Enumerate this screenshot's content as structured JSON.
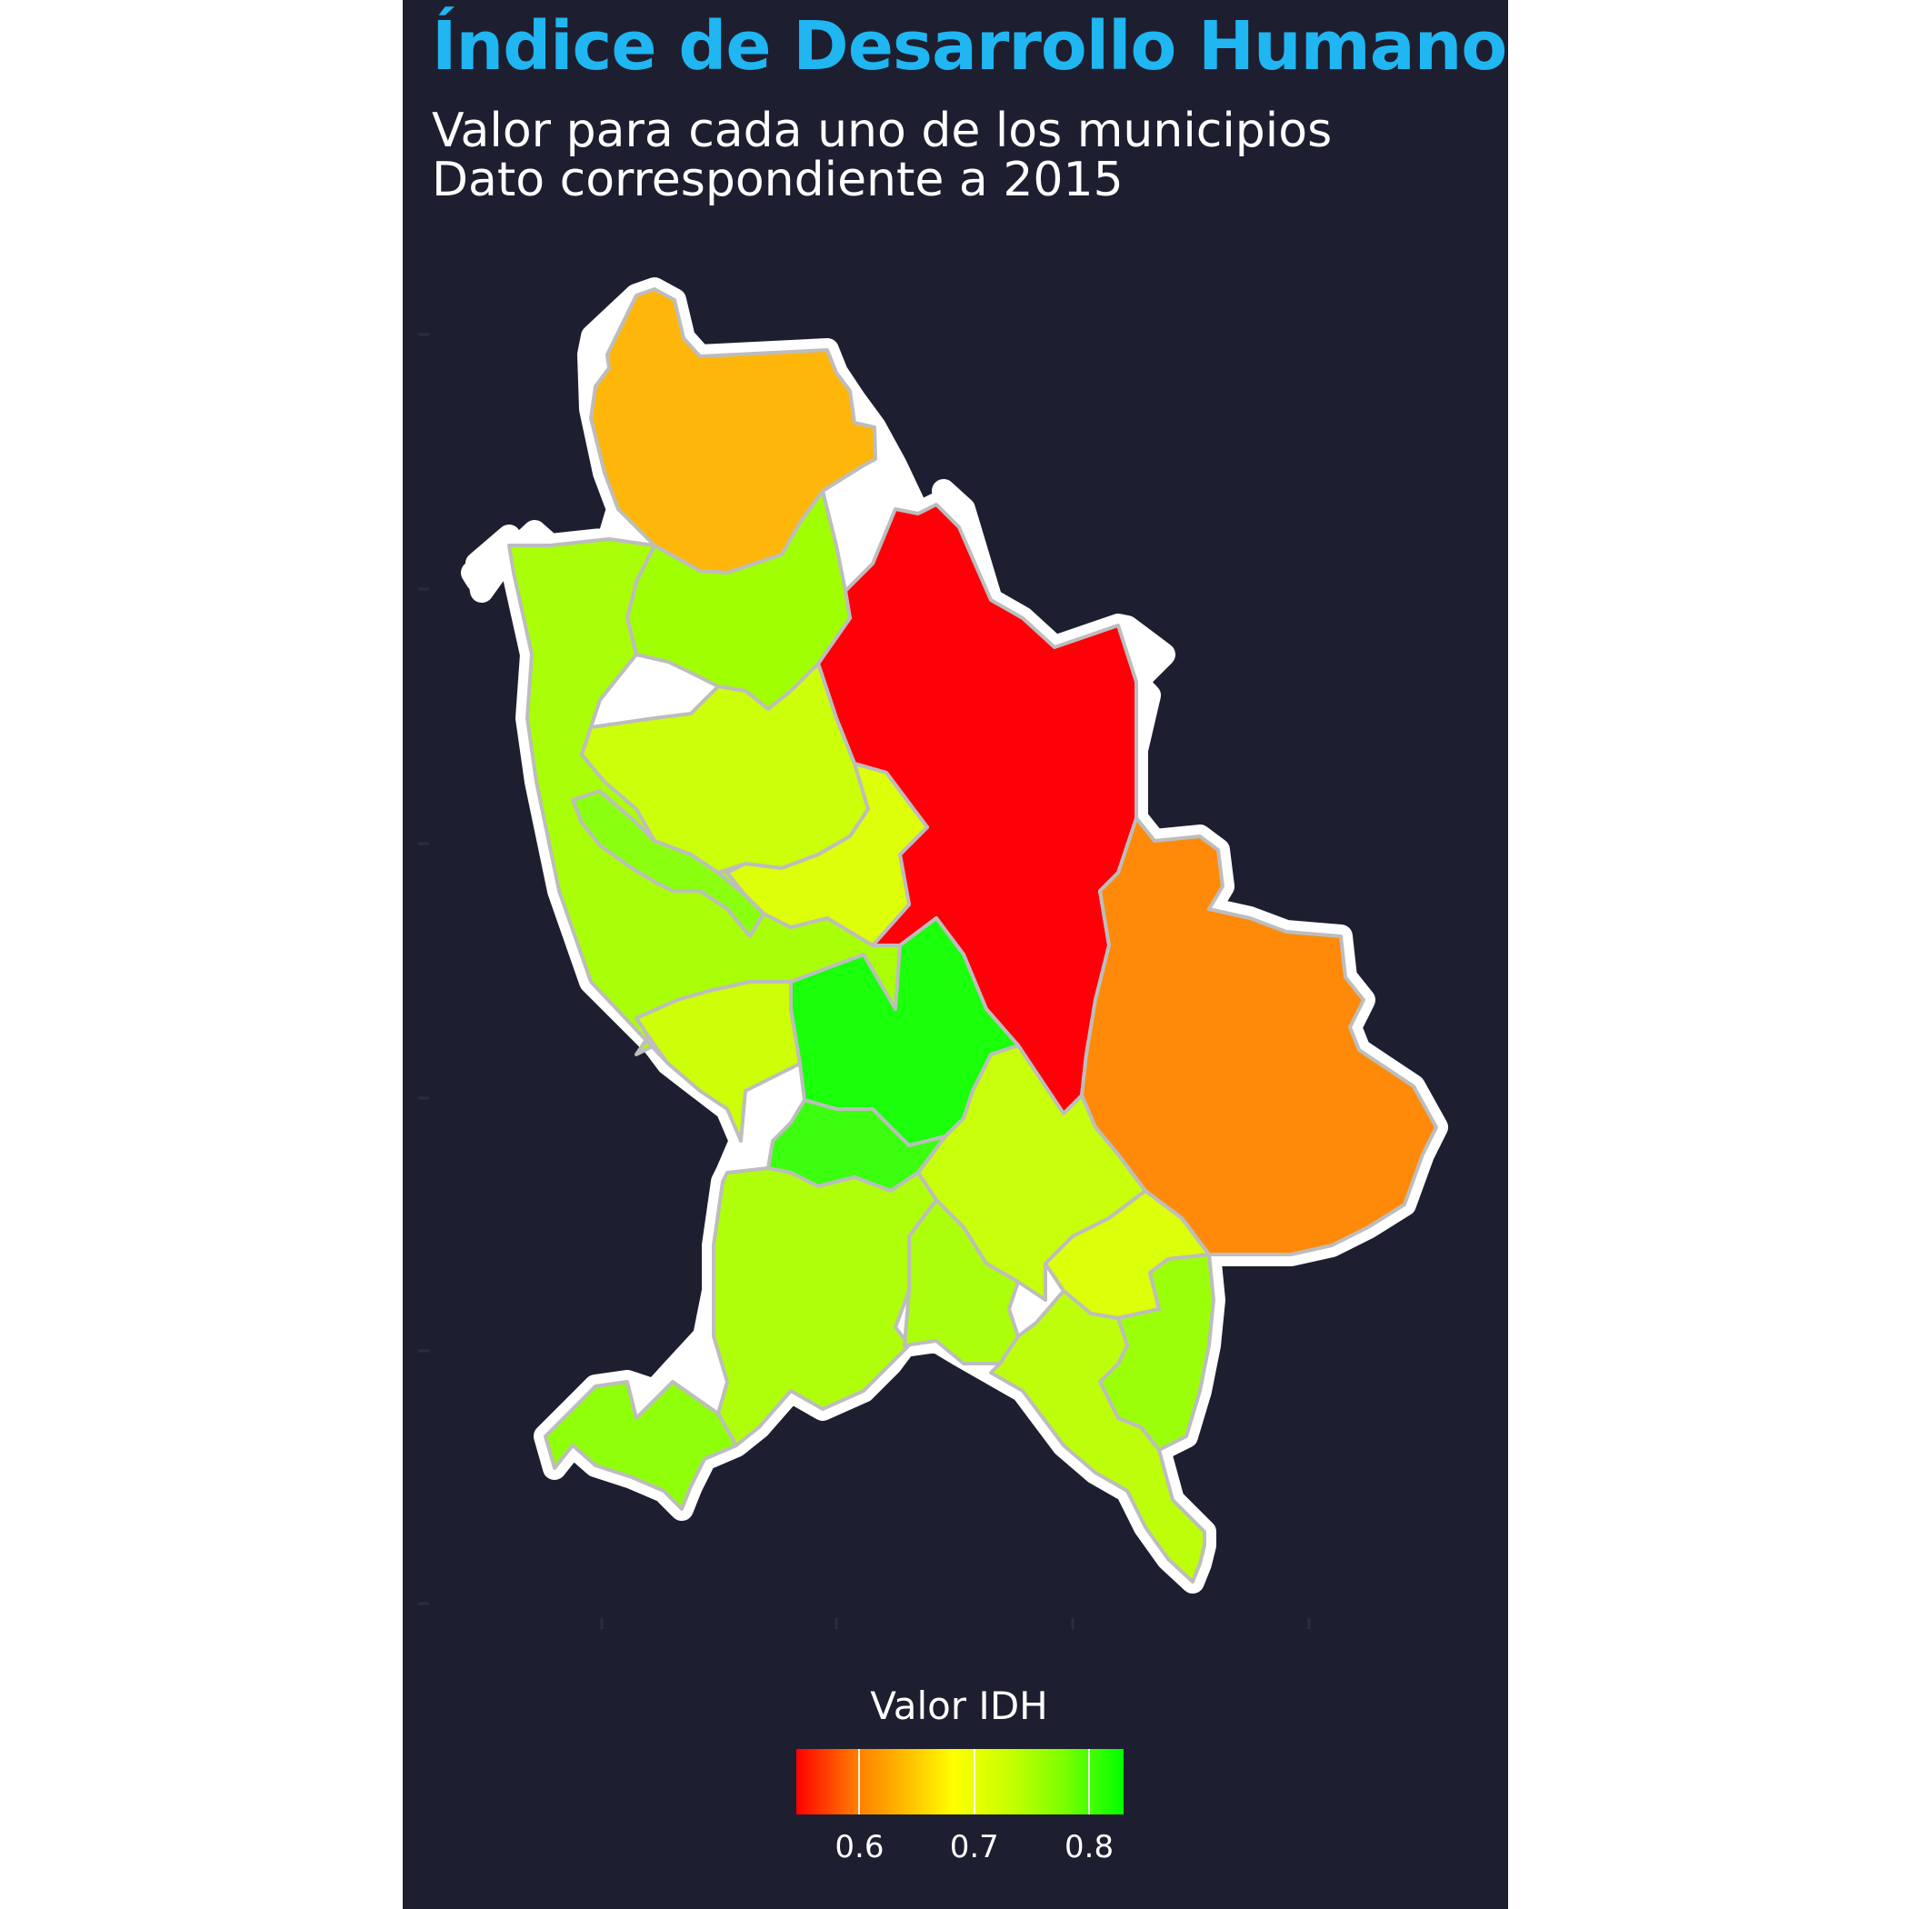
{
  "title": "Índice de Desarrollo Humano",
  "subtitle_line1": "Valor para cada uno de los municipios",
  "subtitle_line2": "Dato correspondiente a 2015",
  "colors": {
    "background": "#1d1f30",
    "title": "#1fb6f2",
    "text": "#ffffff",
    "outline": "#ffffff",
    "border": "#bdbdbd"
  },
  "map_data": {
    "region_type": "municipios",
    "municipalities": [
      {
        "id": "north",
        "idh": 0.64,
        "color": "#ffb60a"
      },
      {
        "id": "northeast-large",
        "idh": 0.55,
        "color": "#ff0008"
      },
      {
        "id": "east",
        "idh": 0.61,
        "color": "#ff8a0a"
      },
      {
        "id": "west-coast",
        "idh": 0.76,
        "color": "#a8ff08"
      },
      {
        "id": "north-central",
        "idh": 0.77,
        "color": "#a0ff00"
      },
      {
        "id": "central-west",
        "idh": 0.73,
        "color": "#ccff0a"
      },
      {
        "id": "central-east-strip",
        "idh": 0.71,
        "color": "#ddff0a"
      },
      {
        "id": "coastal-inner",
        "idh": 0.79,
        "color": "#8aff10"
      },
      {
        "id": "south-west-central",
        "idh": 0.72,
        "color": "#ccff08"
      },
      {
        "id": "capital",
        "idh": 0.83,
        "color": "#1aff0a"
      },
      {
        "id": "capital-south",
        "idh": 0.82,
        "color": "#3cff10"
      },
      {
        "id": "south-central-east",
        "idh": 0.73,
        "color": "#c8ff0a"
      },
      {
        "id": "southwest",
        "idh": 0.75,
        "color": "#b0ff0a"
      },
      {
        "id": "south-middle",
        "idh": 0.76,
        "color": "#acff0a"
      },
      {
        "id": "southeast-inner",
        "idh": 0.71,
        "color": "#dcff0a"
      },
      {
        "id": "southeast",
        "idh": 0.78,
        "color": "#9cff0a"
      },
      {
        "id": "south-tip",
        "idh": 0.74,
        "color": "#bdff0a"
      },
      {
        "id": "far-southwest",
        "idh": 0.79,
        "color": "#90ff0a"
      }
    ]
  },
  "legend": {
    "title": "Valor IDH",
    "min": 0.545,
    "max": 0.83,
    "ticks": [
      "0.6",
      "0.7",
      "0.8"
    ],
    "tick_values": [
      0.6,
      0.7,
      0.8
    ]
  }
}
